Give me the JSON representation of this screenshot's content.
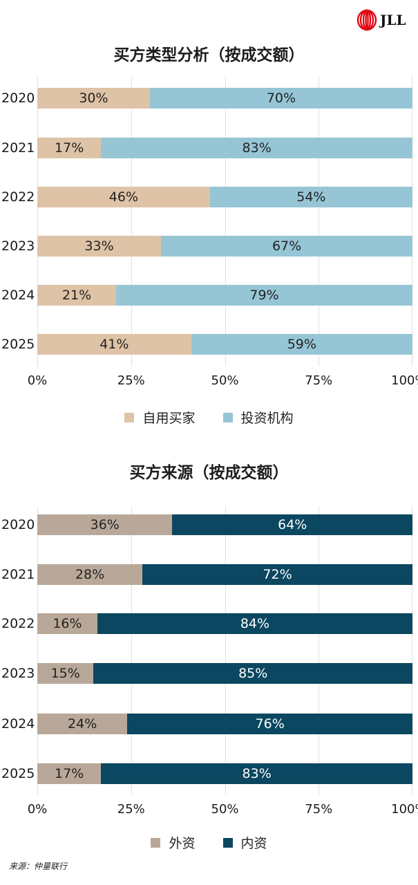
{
  "logo": {
    "text": "JLL",
    "icon": "jll-logo-icon",
    "color": "#e30613"
  },
  "charts": [
    {
      "title": "买方类型分析（按成交额）",
      "xticks": [
        "0%",
        "25%",
        "50%",
        "75%",
        "100%"
      ],
      "colors": {
        "series1": "#dfc3a7",
        "series2": "#96c6d6",
        "text1": "#222222",
        "text2": "#222222"
      },
      "legend": [
        "自用买家",
        "投资机构"
      ],
      "rows": [
        {
          "year": "2020",
          "a": 30,
          "b": 70,
          "a_label": "30%",
          "b_label": "70%"
        },
        {
          "year": "2021",
          "a": 17,
          "b": 83,
          "a_label": "17%",
          "b_label": "83%"
        },
        {
          "year": "2022",
          "a": 46,
          "b": 54,
          "a_label": "46%",
          "b_label": "54%"
        },
        {
          "year": "2023",
          "a": 33,
          "b": 67,
          "a_label": "33%",
          "b_label": "67%"
        },
        {
          "year": "2024",
          "a": 21,
          "b": 79,
          "a_label": "21%",
          "b_label": "79%"
        },
        {
          "year": "2025",
          "a": 41,
          "b": 59,
          "a_label": "41%",
          "b_label": "59%"
        }
      ]
    },
    {
      "title": "买方来源（按成交额）",
      "xticks": [
        "0%",
        "25%",
        "50%",
        "75%",
        "100%"
      ],
      "colors": {
        "series1": "#b9a899",
        "series2": "#0b4760",
        "text1": "#222222",
        "text2": "#ffffff"
      },
      "legend": [
        "外资",
        "内资"
      ],
      "rows": [
        {
          "year": "2020",
          "a": 36,
          "b": 64,
          "a_label": "36%",
          "b_label": "64%"
        },
        {
          "year": "2021",
          "a": 28,
          "b": 72,
          "a_label": "28%",
          "b_label": "72%"
        },
        {
          "year": "2022",
          "a": 16,
          "b": 84,
          "a_label": "16%",
          "b_label": "84%"
        },
        {
          "year": "2023",
          "a": 15,
          "b": 85,
          "a_label": "15%",
          "b_label": "85%"
        },
        {
          "year": "2024",
          "a": 24,
          "b": 76,
          "a_label": "24%",
          "b_label": "76%"
        },
        {
          "year": "2025",
          "a": 17,
          "b": 83,
          "a_label": "17%",
          "b_label": "83%"
        }
      ]
    }
  ],
  "source": "来源：仲量联行",
  "chart_data": [
    {
      "type": "bar",
      "orientation": "horizontal",
      "stacked": true,
      "title": "买方类型分析（按成交额）",
      "categories": [
        "2020",
        "2021",
        "2022",
        "2023",
        "2024",
        "2025"
      ],
      "series": [
        {
          "name": "自用买家",
          "values": [
            30,
            17,
            46,
            33,
            21,
            41
          ],
          "color": "#dfc3a7"
        },
        {
          "name": "投资机构",
          "values": [
            70,
            83,
            54,
            67,
            79,
            59
          ],
          "color": "#96c6d6"
        }
      ],
      "xlabel": "",
      "ylabel": "",
      "xlim": [
        0,
        100
      ],
      "xticks": [
        "0%",
        "25%",
        "50%",
        "75%",
        "100%"
      ],
      "grid": true,
      "legend_position": "bottom"
    },
    {
      "type": "bar",
      "orientation": "horizontal",
      "stacked": true,
      "title": "买方来源（按成交额）",
      "categories": [
        "2020",
        "2021",
        "2022",
        "2023",
        "2024",
        "2025"
      ],
      "series": [
        {
          "name": "外资",
          "values": [
            36,
            28,
            16,
            15,
            24,
            17
          ],
          "color": "#b9a899"
        },
        {
          "name": "内资",
          "values": [
            64,
            72,
            84,
            85,
            76,
            83
          ],
          "color": "#0b4760"
        }
      ],
      "xlabel": "",
      "ylabel": "",
      "xlim": [
        0,
        100
      ],
      "xticks": [
        "0%",
        "25%",
        "50%",
        "75%",
        "100%"
      ],
      "grid": true,
      "legend_position": "bottom",
      "source": "来源：仲量联行"
    }
  ]
}
